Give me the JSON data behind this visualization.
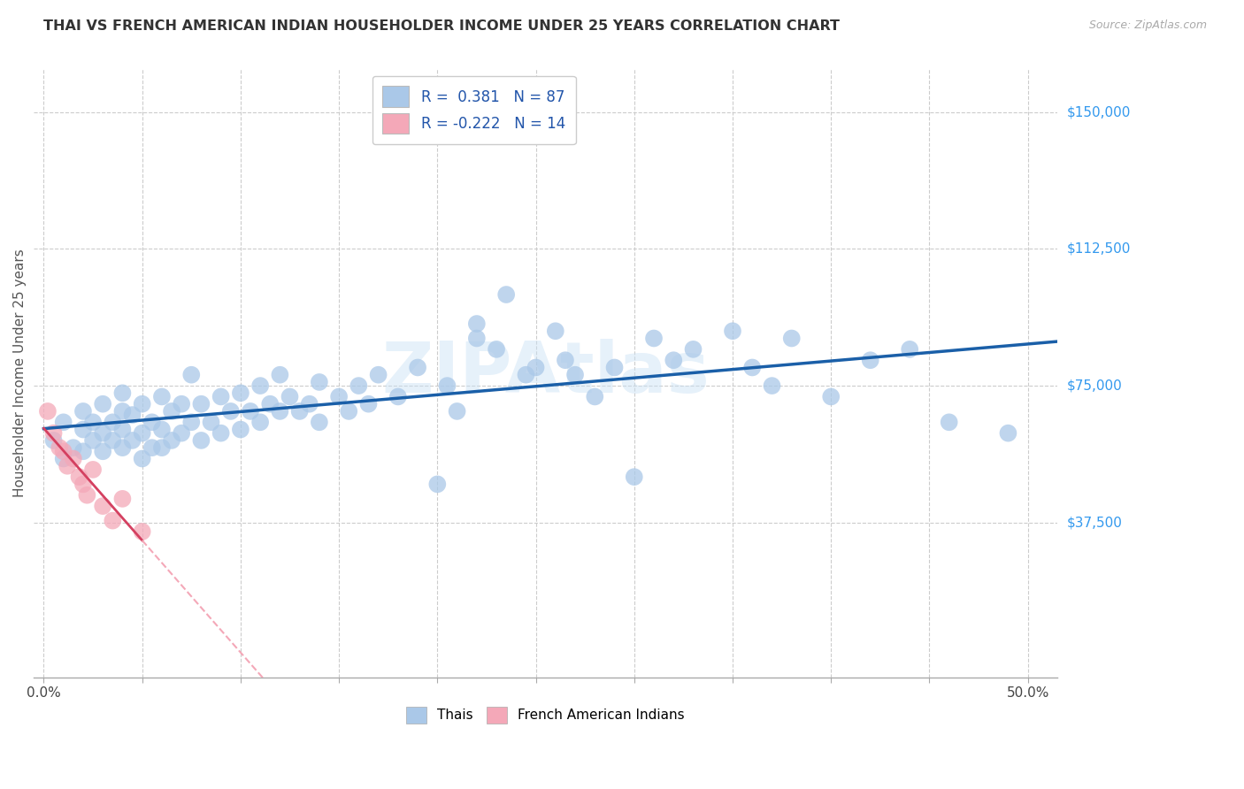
{
  "title": "THAI VS FRENCH AMERICAN INDIAN HOUSEHOLDER INCOME UNDER 25 YEARS CORRELATION CHART",
  "source": "Source: ZipAtlas.com",
  "xlabel_ticks_show": [
    "0.0%",
    "",
    "",
    "",
    "",
    "",
    "",
    "",
    "",
    "",
    "50.0%"
  ],
  "xlabel_vals": [
    0.0,
    0.05,
    0.1,
    0.15,
    0.2,
    0.25,
    0.3,
    0.35,
    0.4,
    0.45,
    0.5
  ],
  "ylabel": "Householder Income Under 25 years",
  "ylabel_ticks": [
    "$37,500",
    "$75,000",
    "$112,500",
    "$150,000"
  ],
  "ylabel_vals": [
    37500,
    75000,
    112500,
    150000
  ],
  "ylim": [
    -5000,
    162000
  ],
  "xlim": [
    -0.005,
    0.515
  ],
  "watermark": "ZIPAtlas",
  "legend_r_thai": "0.381",
  "legend_n_thai": "87",
  "legend_r_french": "-0.222",
  "legend_n_french": "14",
  "thai_color": "#aac8e8",
  "french_color": "#f4a8b8",
  "line_thai_color": "#1a5fa8",
  "line_french_solid_color": "#d44060",
  "line_french_dash_color": "#f4a8b8",
  "thai_scatter_x": [
    0.005,
    0.01,
    0.01,
    0.015,
    0.02,
    0.02,
    0.02,
    0.025,
    0.025,
    0.03,
    0.03,
    0.03,
    0.035,
    0.035,
    0.04,
    0.04,
    0.04,
    0.04,
    0.045,
    0.045,
    0.05,
    0.05,
    0.05,
    0.055,
    0.055,
    0.06,
    0.06,
    0.06,
    0.065,
    0.065,
    0.07,
    0.07,
    0.075,
    0.075,
    0.08,
    0.08,
    0.085,
    0.09,
    0.09,
    0.095,
    0.1,
    0.1,
    0.105,
    0.11,
    0.11,
    0.115,
    0.12,
    0.12,
    0.125,
    0.13,
    0.135,
    0.14,
    0.14,
    0.15,
    0.155,
    0.16,
    0.165,
    0.17,
    0.18,
    0.19,
    0.2,
    0.205,
    0.21,
    0.22,
    0.22,
    0.23,
    0.235,
    0.245,
    0.25,
    0.26,
    0.265,
    0.27,
    0.28,
    0.29,
    0.3,
    0.31,
    0.32,
    0.33,
    0.35,
    0.36,
    0.37,
    0.38,
    0.4,
    0.42,
    0.44,
    0.46,
    0.49
  ],
  "thai_scatter_y": [
    60000,
    55000,
    65000,
    58000,
    57000,
    63000,
    68000,
    60000,
    65000,
    57000,
    62000,
    70000,
    60000,
    65000,
    58000,
    63000,
    68000,
    73000,
    60000,
    67000,
    55000,
    62000,
    70000,
    58000,
    65000,
    58000,
    63000,
    72000,
    60000,
    68000,
    62000,
    70000,
    65000,
    78000,
    60000,
    70000,
    65000,
    62000,
    72000,
    68000,
    63000,
    73000,
    68000,
    65000,
    75000,
    70000,
    68000,
    78000,
    72000,
    68000,
    70000,
    65000,
    76000,
    72000,
    68000,
    75000,
    70000,
    78000,
    72000,
    80000,
    48000,
    75000,
    68000,
    92000,
    88000,
    85000,
    100000,
    78000,
    80000,
    90000,
    82000,
    78000,
    72000,
    80000,
    50000,
    88000,
    82000,
    85000,
    90000,
    80000,
    75000,
    88000,
    72000,
    82000,
    85000,
    65000,
    62000
  ],
  "french_scatter_x": [
    0.002,
    0.005,
    0.008,
    0.01,
    0.012,
    0.015,
    0.018,
    0.02,
    0.022,
    0.025,
    0.03,
    0.035,
    0.04,
    0.05
  ],
  "french_scatter_y": [
    68000,
    62000,
    58000,
    57000,
    53000,
    55000,
    50000,
    48000,
    45000,
    52000,
    42000,
    38000,
    44000,
    35000
  ],
  "legend_bottom_thais": "Thais",
  "legend_bottom_french": "French American Indians"
}
